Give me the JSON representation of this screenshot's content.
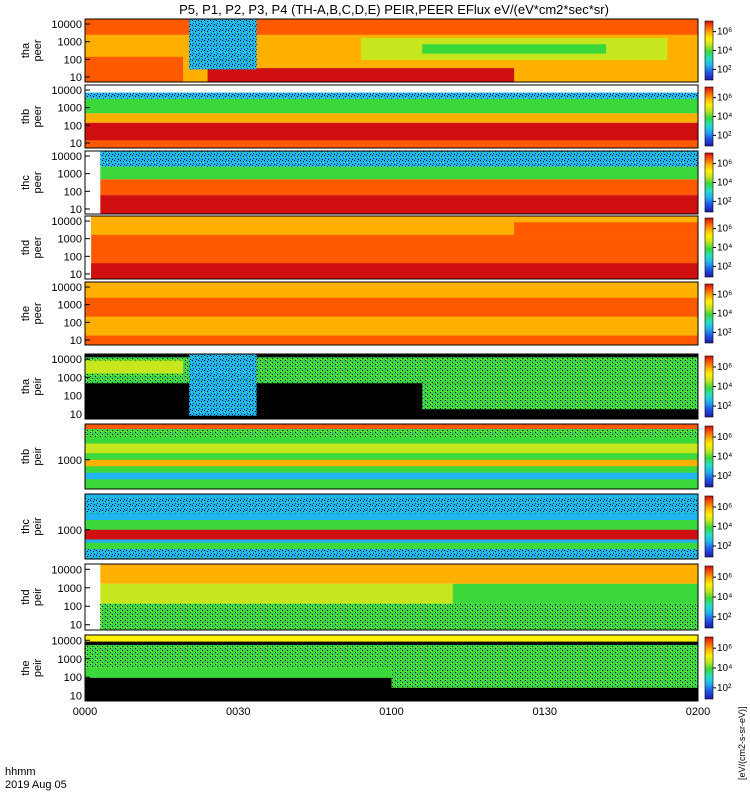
{
  "title": "P5, P1, P2, P3, P4 (TH-A,B,C,D,E) PEIR,PEER EFlux eV/(eV*cm2*sec*sr)",
  "footer": {
    "left_label": "hhmm",
    "date": "2019 Aug 05"
  },
  "colorbar": {
    "unit_label": "[eV/(cm2-s-sr-eV)]",
    "tick_labels": [
      "10²",
      "10⁴",
      "10⁶"
    ],
    "colormap": [
      "#1c1ca6",
      "#1f50e6",
      "#20b4f0",
      "#23e0c4",
      "#3ad83a",
      "#c8e61e",
      "#fff200",
      "#ffb000",
      "#ff5a00",
      "#d01010"
    ]
  },
  "chart_data": {
    "type": "heatmap",
    "x_ticks": [
      "0000",
      "0030",
      "0100",
      "0130",
      "0200"
    ],
    "x_range": [
      "0000",
      "0200"
    ],
    "panels": [
      {
        "name": "peer-a",
        "label": [
          "tha",
          "peer"
        ],
        "y_ticks": [
          "10000",
          "1000",
          "100",
          "10"
        ],
        "scale": "log",
        "colorbar_ticks": [
          "10²",
          "10⁴",
          "10⁶"
        ]
      },
      {
        "name": "peer-b",
        "label": [
          "thb",
          "peer"
        ],
        "y_ticks": [
          "10000",
          "1000",
          "100",
          "10"
        ],
        "scale": "log",
        "colorbar_ticks": [
          "10²",
          "10⁴",
          "10⁶"
        ]
      },
      {
        "name": "peer-c",
        "label": [
          "thc",
          "peer"
        ],
        "y_ticks": [
          "10000",
          "1000",
          "100",
          "10"
        ],
        "scale": "log",
        "colorbar_ticks": [
          "10²",
          "10⁴",
          "10⁶"
        ]
      },
      {
        "name": "peer-d",
        "label": [
          "thd",
          "peer"
        ],
        "y_ticks": [
          "10000",
          "1000",
          "100",
          "10"
        ],
        "scale": "log",
        "colorbar_ticks": [
          "10²",
          "10⁴",
          "10⁶"
        ]
      },
      {
        "name": "peer-e",
        "label": [
          "the",
          "peer"
        ],
        "y_ticks": [
          "10000",
          "1000",
          "100",
          "10"
        ],
        "scale": "log",
        "colorbar_ticks": [
          "10²",
          "10⁴",
          "10⁶"
        ]
      },
      {
        "name": "peir-a",
        "label": [
          "tha",
          "peir"
        ],
        "y_ticks": [
          "10000",
          "1000",
          "100",
          "10"
        ],
        "scale": "log",
        "colorbar_ticks": [
          "10²",
          "10⁴",
          "10⁶"
        ]
      },
      {
        "name": "peir-b",
        "label": [
          "thb",
          "peir"
        ],
        "y_ticks": [
          "1000"
        ],
        "scale": "log",
        "colorbar_ticks": [
          "10²",
          "10⁴",
          "10⁶"
        ]
      },
      {
        "name": "peir-c",
        "label": [
          "thc",
          "peir"
        ],
        "y_ticks": [
          "1000"
        ],
        "scale": "log",
        "colorbar_ticks": [
          "10²",
          "10⁴",
          "10⁶"
        ]
      },
      {
        "name": "peir-d",
        "label": [
          "thd",
          "peir"
        ],
        "y_ticks": [
          "10000",
          "1000",
          "100",
          "10"
        ],
        "scale": "log",
        "colorbar_ticks": [
          "10²",
          "10⁴",
          "10⁶"
        ]
      },
      {
        "name": "peir-e",
        "label": [
          "the",
          "peir"
        ],
        "y_ticks": [
          "10000",
          "1000",
          "100",
          "10"
        ],
        "scale": "log",
        "colorbar_ticks": [
          "10²",
          "10⁴",
          "10⁶"
        ]
      }
    ]
  }
}
